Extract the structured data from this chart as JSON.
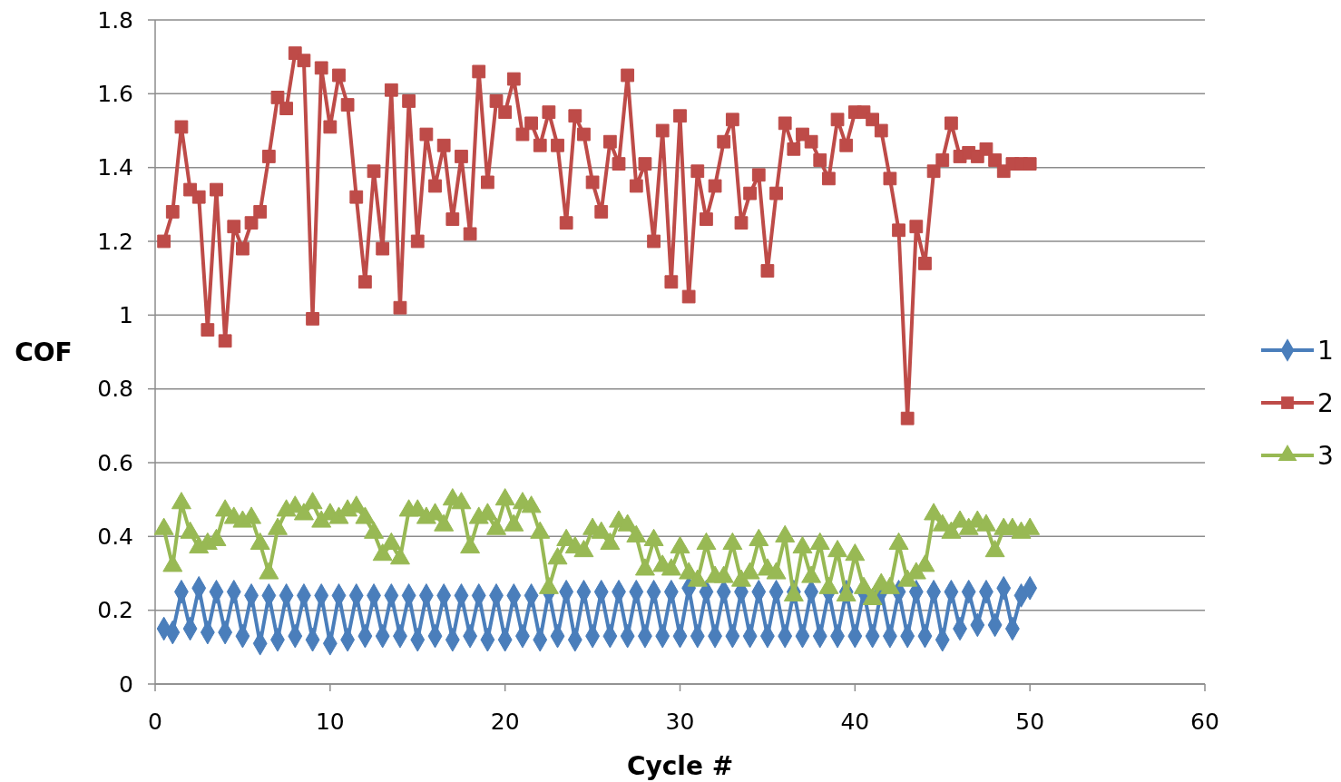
{
  "chart_data": {
    "type": "line",
    "xlabel": "Cycle #",
    "ylabel": "COF",
    "xlim": [
      0,
      60
    ],
    "xticks": [
      0,
      10,
      20,
      30,
      40,
      50,
      60
    ],
    "ylim": [
      0,
      1.8
    ],
    "yticks": [
      0,
      0.2,
      0.4,
      0.6,
      0.8,
      1,
      1.2,
      1.4,
      1.6,
      1.8
    ],
    "grid": "y",
    "legend": "right",
    "line_style": "solid",
    "x": [
      0.5,
      1,
      1.5,
      2,
      2.5,
      3,
      3.5,
      4,
      4.5,
      5,
      5.5,
      6,
      6.5,
      7,
      7.5,
      8,
      8.5,
      9,
      9.5,
      10,
      10.5,
      11,
      11.5,
      12,
      12.5,
      13,
      13.5,
      14,
      14.5,
      15,
      15.5,
      16,
      16.5,
      17,
      17.5,
      18,
      18.5,
      19,
      19.5,
      20,
      20.5,
      21,
      21.5,
      22,
      22.5,
      23,
      23.5,
      24,
      24.5,
      25,
      25.5,
      26,
      26.5,
      27,
      27.5,
      28,
      28.5,
      29,
      29.5,
      30,
      30.5,
      31,
      31.5,
      32,
      32.5,
      33,
      33.5,
      34,
      34.5,
      35,
      35.5,
      36,
      36.5,
      37,
      37.5,
      38,
      38.5,
      39,
      39.5,
      40,
      40.5,
      41,
      41.5,
      42,
      42.5,
      43,
      43.5,
      44,
      44.5,
      45,
      45.5,
      46,
      46.5,
      47,
      47.5,
      48,
      48.5,
      49,
      49.5,
      50
    ],
    "series": [
      {
        "name": "1",
        "color": "#4a7ebb",
        "marker": "diamond",
        "values": [
          0.15,
          0.14,
          0.25,
          0.15,
          0.26,
          0.14,
          0.25,
          0.14,
          0.25,
          0.13,
          0.24,
          0.11,
          0.24,
          0.12,
          0.24,
          0.13,
          0.24,
          0.12,
          0.24,
          0.11,
          0.24,
          0.12,
          0.24,
          0.13,
          0.24,
          0.13,
          0.24,
          0.13,
          0.24,
          0.12,
          0.24,
          0.13,
          0.24,
          0.12,
          0.24,
          0.13,
          0.24,
          0.12,
          0.24,
          0.12,
          0.24,
          0.13,
          0.24,
          0.12,
          0.25,
          0.13,
          0.25,
          0.12,
          0.25,
          0.13,
          0.25,
          0.13,
          0.25,
          0.13,
          0.25,
          0.13,
          0.25,
          0.13,
          0.25,
          0.13,
          0.26,
          0.13,
          0.25,
          0.13,
          0.25,
          0.13,
          0.25,
          0.13,
          0.25,
          0.13,
          0.25,
          0.13,
          0.25,
          0.13,
          0.25,
          0.13,
          0.25,
          0.13,
          0.25,
          0.13,
          0.25,
          0.13,
          0.25,
          0.13,
          0.25,
          0.13,
          0.25,
          0.13,
          0.25,
          0.12,
          0.25,
          0.15,
          0.25,
          0.16,
          0.25,
          0.16,
          0.26,
          0.15,
          0.24,
          0.26
        ]
      },
      {
        "name": "2",
        "color": "#be4b48",
        "marker": "square",
        "values": [
          1.2,
          1.28,
          1.51,
          1.34,
          1.32,
          0.96,
          1.34,
          0.93,
          1.24,
          1.18,
          1.25,
          1.28,
          1.43,
          1.59,
          1.56,
          1.71,
          1.69,
          0.99,
          1.67,
          1.51,
          1.65,
          1.57,
          1.32,
          1.09,
          1.39,
          1.18,
          1.61,
          1.02,
          1.58,
          1.2,
          1.49,
          1.35,
          1.46,
          1.26,
          1.43,
          1.22,
          1.66,
          1.36,
          1.58,
          1.55,
          1.64,
          1.49,
          1.52,
          1.46,
          1.55,
          1.46,
          1.25,
          1.54,
          1.49,
          1.36,
          1.28,
          1.47,
          1.41,
          1.65,
          1.35,
          1.41,
          1.2,
          1.5,
          1.09,
          1.54,
          1.05,
          1.39,
          1.26,
          1.35,
          1.47,
          1.53,
          1.25,
          1.33,
          1.38,
          1.12,
          1.33,
          1.52,
          1.45,
          1.49,
          1.47,
          1.42,
          1.37,
          1.53,
          1.46,
          1.55,
          1.55,
          1.53,
          1.5,
          1.37,
          1.23,
          0.72,
          1.24,
          1.14,
          1.39,
          1.42,
          1.52,
          1.43,
          1.44,
          1.43,
          1.45,
          1.42,
          1.39,
          1.41,
          1.41,
          1.41
        ]
      },
      {
        "name": "3",
        "color": "#98b954",
        "marker": "triangle",
        "values": [
          0.42,
          0.32,
          0.49,
          0.41,
          0.37,
          0.38,
          0.39,
          0.47,
          0.45,
          0.44,
          0.45,
          0.38,
          0.3,
          0.42,
          0.47,
          0.48,
          0.46,
          0.49,
          0.44,
          0.46,
          0.45,
          0.47,
          0.48,
          0.45,
          0.41,
          0.35,
          0.38,
          0.34,
          0.47,
          0.47,
          0.45,
          0.46,
          0.43,
          0.5,
          0.49,
          0.37,
          0.45,
          0.46,
          0.42,
          0.5,
          0.43,
          0.49,
          0.48,
          0.41,
          0.26,
          0.34,
          0.39,
          0.37,
          0.36,
          0.42,
          0.41,
          0.38,
          0.44,
          0.43,
          0.4,
          0.31,
          0.39,
          0.32,
          0.31,
          0.37,
          0.3,
          0.28,
          0.38,
          0.29,
          0.29,
          0.38,
          0.28,
          0.3,
          0.39,
          0.31,
          0.3,
          0.4,
          0.24,
          0.37,
          0.29,
          0.38,
          0.26,
          0.36,
          0.24,
          0.35,
          0.26,
          0.23,
          0.27,
          0.26,
          0.38,
          0.28,
          0.3,
          0.32,
          0.46,
          0.43,
          0.41,
          0.44,
          0.42,
          0.44,
          0.43,
          0.36,
          0.42,
          0.42,
          0.41,
          0.42
        ]
      }
    ]
  }
}
